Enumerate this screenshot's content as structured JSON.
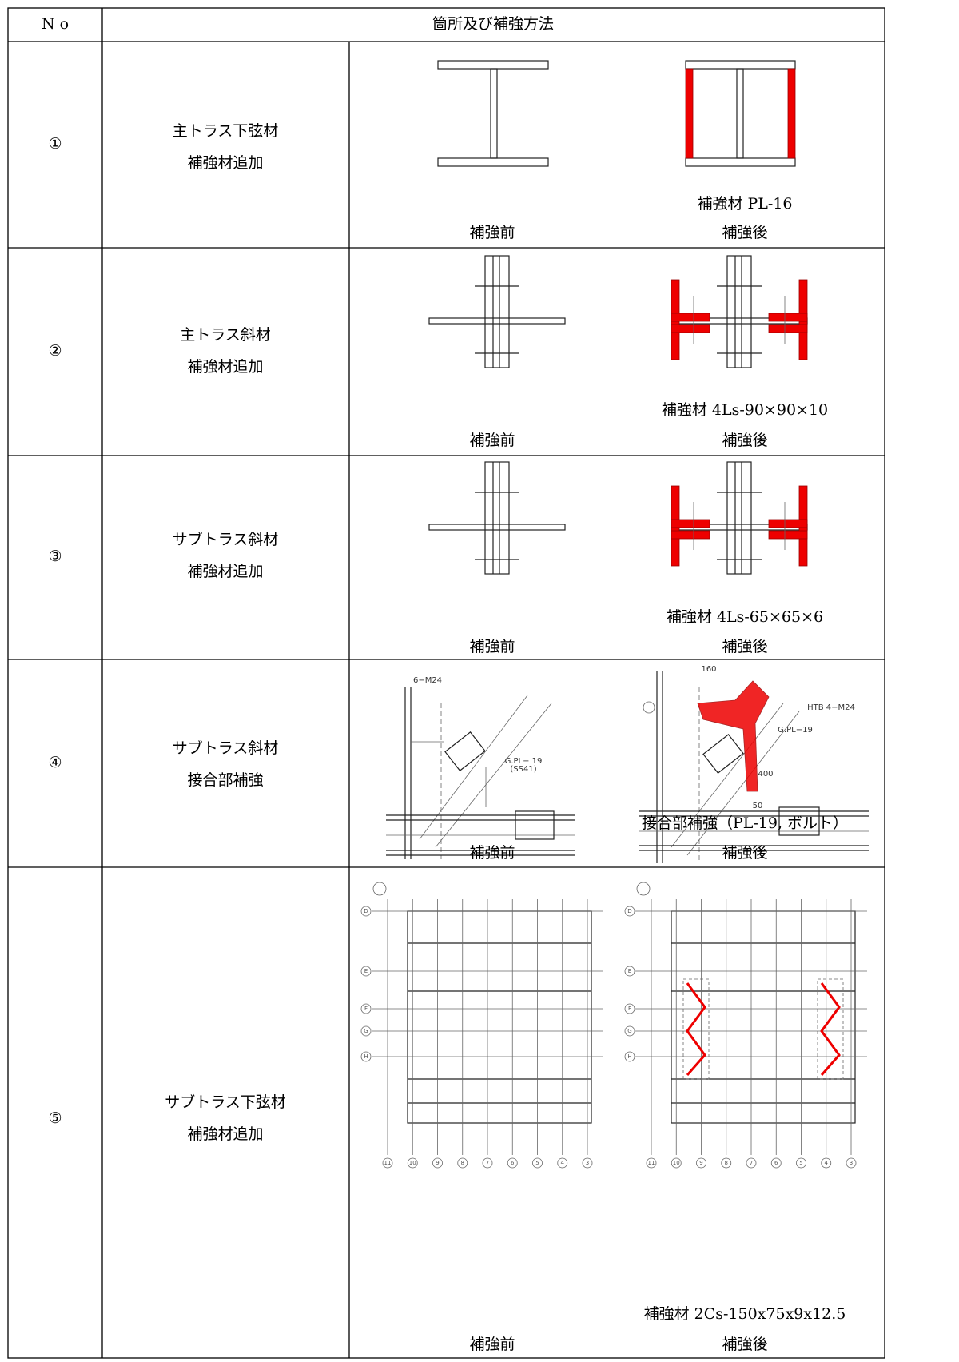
{
  "header": {
    "no": "N o",
    "content": "箇所及び補強方法"
  },
  "rows": [
    {
      "no": "①",
      "location": "主トラス下弦材",
      "method": "補強材追加",
      "note": "補強材 PL-16",
      "before": "補強前",
      "after": "補強後"
    },
    {
      "no": "②",
      "location": "主トラス斜材",
      "method": "補強材追加",
      "note": "補強材 4Ls-90×90×10",
      "before": "補強前",
      "after": "補強後"
    },
    {
      "no": "③",
      "location": "サブトラス斜材",
      "method": "補強材追加",
      "note": "補強材 4Ls-65×65×6",
      "before": "補強前",
      "after": "補強後"
    },
    {
      "no": "④",
      "location": "サブトラス斜材",
      "method": "接合部補強",
      "note": "接合部補強（PL-19, ボルト）",
      "before": "補強前",
      "after": "補強後"
    },
    {
      "no": "⑤",
      "location": "サブトラス下弦材",
      "method": "補強材追加",
      "note": "補強材 2Cs-150x75x9x12.5",
      "before": "補強前",
      "after": "補強後"
    }
  ],
  "detail": {
    "before_labels": [
      "6−M24",
      "G.PL− 19",
      "(SS41)"
    ],
    "after_labels": [
      "160",
      "HTB 4−M24",
      "G.PL−19",
      "400",
      "50"
    ]
  },
  "plan": {
    "row_labels": [
      "D",
      "E",
      "F",
      "G",
      "H"
    ],
    "col_labels": [
      "11",
      "10",
      "9",
      "8",
      "7",
      "6",
      "5",
      "4",
      "3"
    ]
  }
}
